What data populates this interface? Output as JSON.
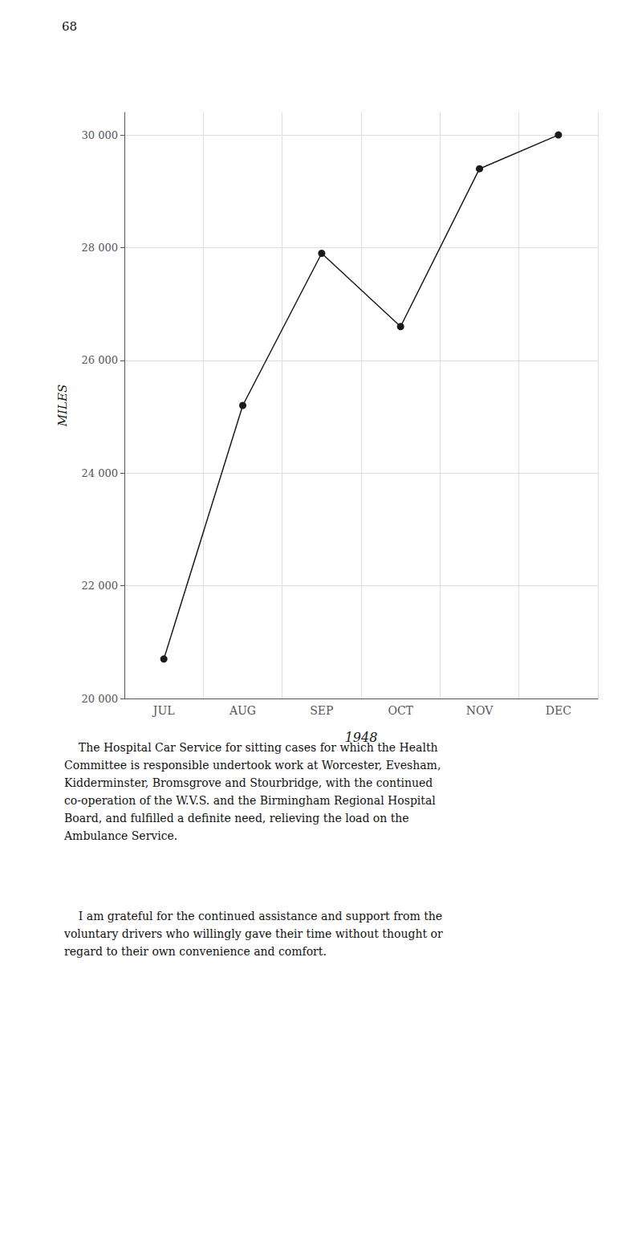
{
  "chart_data": {
    "type": "line",
    "title": "68",
    "categories": [
      "JUL",
      "AUG",
      "SEP",
      "OCT",
      "NOV",
      "DEC"
    ],
    "values": [
      20700,
      25200,
      27900,
      26600,
      29400,
      30000
    ],
    "xlabel": "1948",
    "ylabel": "MILES",
    "color": "#1a1a1a",
    "marker": "circle",
    "ylim": [
      20000,
      30400
    ],
    "yticks": [
      {
        "value": 20000,
        "label": "20 000"
      },
      {
        "value": 22000,
        "label": "22 000"
      },
      {
        "value": 24000,
        "label": "24 000"
      },
      {
        "value": 26000,
        "label": "26 000"
      },
      {
        "value": 28000,
        "label": "28 000"
      },
      {
        "value": 30000,
        "label": "30 000"
      }
    ],
    "grid": true,
    "annotations": [
      "    The Hospital Car Service for sitting cases for which the Health\nCommittee is responsible undertook work at Worcester, Evesham,\nKidderminster, Bromsgrove and Stourbridge, with the continued\nco-operation of the W.V.S. and the Birmingham Regional Hospital\nBoard, and fulfilled a definite need, relieving the load on the\nAmbulance Service.",
      "    I am grateful for the continued assistance and support from the\nvoluntary drivers who willingly gave their time without thought or\nregard to their own convenience and comfort."
    ]
  }
}
